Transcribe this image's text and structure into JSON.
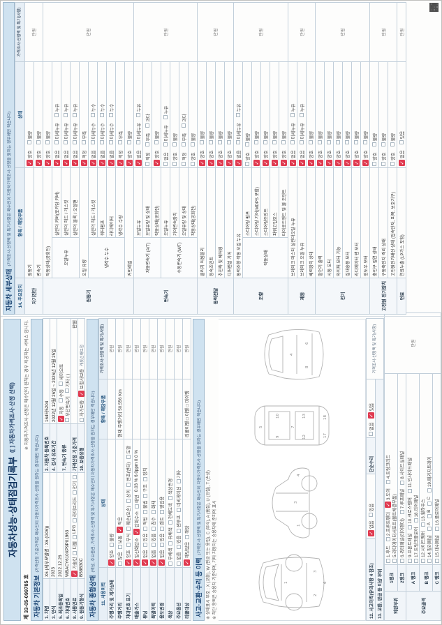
{
  "doc": {
    "serial": "제 33-05-099785 호",
    "title": "자동차성능·상태점검기록부",
    "title_option": "([ ] 자동차가격조사·산정 선택)",
    "service_note": "※ 자동차가격조사·산정은 매수인이 원하는 경우 제공하는 서비스 입니다.",
    "price_col_header": "가격조사·산정액 및 특기(사항)",
    "unit": "만원"
  },
  "basic_info": {
    "header": "자동차 기본정보",
    "note": "(가격산정 기준가격은 매수인이 자동차가격조사·산정을 원하는 경우에만 적습니다)",
    "car_name_label": "1. 차명",
    "car_name": "X6  (세부모델명 : X6 (G06))",
    "reg_no_label": "2. 자동차 등록번호",
    "reg_no": "164터5204",
    "year_label": "3. 연식",
    "year": "2023",
    "inspection_label": "4. 검사 유효기간",
    "inspection": "2022년 12월 26일 ~ 2026년 12월 25일",
    "first_reg_label": "5. 최초등록일",
    "first_reg": "2022.12.26",
    "transmission_label": "7. 변속기 종류",
    "transmission_opts1": "✓자동|수동|세미오토",
    "transmission_opts2": "무단변속기|기타 (          )",
    "vin_label": "6. 차대번호",
    "vin": "WBACY610XP9P01963",
    "fuel_label": "8. 사용연료",
    "fuel_opts": "✓가솔린|디젤|LPG|하이브리드|전기|수소전기|기타",
    "base_price_label": "가격산정 기준가격",
    "base_price_unit": "만원",
    "engine_label": "9. 원동기형식",
    "engine": "B58B30C",
    "warranty_label": "10. 보증유형",
    "warranty_opts": "자가보증|✓보험사보증",
    "warranty_extra": "캐롯손해보험"
  },
  "summary": {
    "header": "자동차 종합상태",
    "note": "(색상, 주요옵션, 가격조사·산정액 및 특기사항은 매수인이 자동차가격조사·산정을 원하는 경우에만 적습니다)",
    "col_history": "11. 사용이력",
    "col_status": "상태",
    "col_item": "항목 / 해당부품",
    "rows": [
      {
        "label": "주행거리 및 계기상태",
        "opts": "✓양호|불량",
        "item": ""
      },
      {
        "label": "주행거리",
        "opts": "많음|보통|✓적음",
        "item": "현재 주행거리      50,556 Km"
      },
      {
        "label": "차대번호 표기",
        "opts": "✓양호|부식|훼손(오손)|상이|변조(변타)|도말",
        "item": ""
      },
      {
        "label": "배출가스",
        "opts": "✓일산화탄소|✓탄화수소|매연",
        "value": "0.03 %   6.0ppm   0.0 %",
        "item": ""
      },
      {
        "label": "튜닝",
        "opts": "✓없음|있음|적법|불법|구조|장치",
        "item": ""
      },
      {
        "label": "특별이력",
        "opts": "✓없음|있음|침수|화재",
        "item": ""
      },
      {
        "label": "용도변경",
        "opts": "✓없음|있음|렌트|영업용",
        "item": ""
      },
      {
        "label": "색상",
        "opts": "무채색|유채색|전체도색|색상변경",
        "item": ""
      },
      {
        "label": "주요옵션",
        "opts": "없음|있음|썬루프|네비게이션|기타",
        "item": ""
      },
      {
        "label": "리콜대상",
        "opts": "✓해당없음|해당",
        "item": "리콜이행   □ 이행  □ 미이행"
      }
    ]
  },
  "accident": {
    "header": "사고·교환·수리 등 이력",
    "note": "(가격조사·산정액 및 특기사항은 매수인이 자동차가격조사·산정을 원하는 경우에만 적습니다)",
    "legend1": "※ 상태표시 부호 : X (교환), W (판금 또는 용접), C (부식), A (흠집), U (요철), T (손상)",
    "legend2": "※ 하단 항목은 승용차 기준이며, 기타 자동차는 승용차에 준하여 표시",
    "row12_label": "12. 사고이력(유의사항 4 참조)",
    "row12_opts": "✓없음|있음",
    "simple_repair_label": "단순수리",
    "simple_repair_opts": "없음|✓있음",
    "row13_label": "13. 교환, 판금 등 이상 부위",
    "groups": [
      {
        "part": "외판부위",
        "ranks": [
          {
            "rank": "1랭크",
            "lines": [
              "1.후드|2.프론트펜더|✓3.도어|4.트렁크리드",
              "5.라디에이터서포트(볼트체결부품)"
            ]
          },
          {
            "rank": "2랭크",
            "lines": [
              "6.쿼터패널(리어펜더)|7.루프패널|8.사이드실패널"
            ]
          }
        ]
      },
      {
        "part": "주요골격",
        "ranks": [
          {
            "rank": "A 랭크",
            "lines": [
              "9.프론트패널|10.크로스멤버|11.인사이드패널",
              "17.트렁크플로어|18.리어패널"
            ]
          },
          {
            "rank": "B 랭크",
            "lines": [
              "12.사이드멤버|13.휠하우스",
              "14.필러패널|A|B|C|19.패키지트레이"
            ]
          },
          {
            "rank": "C 랭크",
            "lines": [
              "15.대쉬패널|16.플로어패널"
            ]
          }
        ]
      }
    ],
    "diagram_views": [
      "front-three-quarter",
      "side",
      "top",
      "rear-three-quarter"
    ]
  },
  "detail": {
    "header": "자동차 세부상태",
    "note": "(가격조사·산정액 및 특기사항은 매수인이 자동차가격조사·산정을 원하는 경우에만 적습니다)",
    "col_device": "14. 주요장치",
    "col_item": "항목 / 해당부품",
    "col_status": "상태",
    "rows": [
      {
        "g": "자기진단",
        "i": "원동기",
        "s": "",
        "o": "✓양호|불량"
      },
      {
        "g": "자기진단",
        "i": "변속기",
        "s": "",
        "o": "✓양호|불량"
      },
      {
        "g": "원동기",
        "i": "작동상태(공회전)",
        "s": "",
        "o": "✓양호|불량"
      },
      {
        "g": "원동기",
        "i": "오일누유",
        "s": "실린더 커버(로커암 커버)",
        "o": "✓없음|미세누유|누유"
      },
      {
        "g": "원동기",
        "i": "오일누유",
        "s": "실린더 헤드 / 개스킷",
        "o": "✓없음|미세누유|누유"
      },
      {
        "g": "원동기",
        "i": "오일누유",
        "s": "실린더 블록 / 오일팬",
        "o": "✓없음|미세누유|누유"
      },
      {
        "g": "원동기",
        "i": "오일 유량",
        "s": "",
        "o": "✓적정|부족"
      },
      {
        "g": "원동기",
        "i": "냉각수 누수",
        "s": "실린더 헤드 / 개스킷",
        "o": "✓없음|미세누수|누수"
      },
      {
        "g": "원동기",
        "i": "냉각수 누수",
        "s": "워터펌프",
        "o": "✓없음|미세누수|누수"
      },
      {
        "g": "원동기",
        "i": "냉각수 누수",
        "s": "라디에이터",
        "o": "✓없음|미세누수|누수"
      },
      {
        "g": "원동기",
        "i": "냉각수 누수",
        "s": "냉각수 수량",
        "o": "✓적정|부족"
      },
      {
        "g": "원동기",
        "i": "커먼레일",
        "s": "",
        "o": "✓양호|불량"
      },
      {
        "g": "변속기",
        "i": "자동변속기 (A/T)",
        "s": "오일누유",
        "o": "✓없음|미세누유|누유"
      },
      {
        "g": "변속기",
        "i": "자동변속기 (A/T)",
        "s": "오일유량 및 상태",
        "o": "적정|부족|과다"
      },
      {
        "g": "변속기",
        "i": "자동변속기 (A/T)",
        "s": "작동상태(공회전)",
        "o": "✓양호|불량"
      },
      {
        "g": "변속기",
        "i": "수동변속기 (M/T)",
        "s": "오일누유",
        "o": "없음|미세누유|누유"
      },
      {
        "g": "변속기",
        "i": "수동변속기 (M/T)",
        "s": "기어변속장치",
        "o": "양호|불량"
      },
      {
        "g": "변속기",
        "i": "수동변속기 (M/T)",
        "s": "오일유량 및 상태",
        "o": "적정|부족|과다"
      },
      {
        "g": "변속기",
        "i": "수동변속기 (M/T)",
        "s": "작동상태(공회전)",
        "o": "양호|불량"
      },
      {
        "g": "동력전달",
        "i": "클러치 어셈블리",
        "s": "",
        "o": "✓양호|불량"
      },
      {
        "g": "동력전달",
        "i": "등속조인트",
        "s": "",
        "o": "✓양호|불량"
      },
      {
        "g": "동력전달",
        "i": "추진축 및 베어링",
        "s": "",
        "o": "✓양호|불량"
      },
      {
        "g": "동력전달",
        "i": "디퍼렌셜 기어",
        "s": "",
        "o": "✓양호|불량"
      },
      {
        "g": "조향",
        "i": "동력조향 작동 오일 누유",
        "s": "",
        "o": "✓없음|미세누유|누유"
      },
      {
        "g": "조향",
        "i": "작동상태",
        "s": "스티어링 펌프",
        "o": "양호|불량"
      },
      {
        "g": "조향",
        "i": "작동상태",
        "s": "스티어링 기어(MDPS 포함)",
        "o": "✓양호|불량"
      },
      {
        "g": "조향",
        "i": "작동상태",
        "s": "스티어링조인트",
        "o": "✓양호|불량"
      },
      {
        "g": "조향",
        "i": "작동상태",
        "s": "파워고압호스",
        "o": "✓양호|불량"
      },
      {
        "g": "조향",
        "i": "작동상태",
        "s": "타이로드엔드 및 볼 조인트",
        "o": "✓양호|불량"
      },
      {
        "g": "제동",
        "i": "브레이크 마스터 실린더오일 누유",
        "s": "",
        "o": "✓없음|미세누유|누유"
      },
      {
        "g": "제동",
        "i": "브레이크 오일 누유",
        "s": "",
        "o": "✓없음|미세누유|누유"
      },
      {
        "g": "제동",
        "i": "배력장치 상태",
        "s": "",
        "o": "✓양호|불량"
      },
      {
        "g": "전기",
        "i": "발전기 출력",
        "s": "",
        "o": "✓양호|불량"
      },
      {
        "g": "전기",
        "i": "시동 모터",
        "s": "",
        "o": "✓양호|불량"
      },
      {
        "g": "전기",
        "i": "와이퍼 모터 기능",
        "s": "",
        "o": "✓양호|불량"
      },
      {
        "g": "전기",
        "i": "실내송풍 모터",
        "s": "",
        "o": "✓양호|불량"
      },
      {
        "g": "전기",
        "i": "라디에이터 팬 모터",
        "s": "",
        "o": "✓양호|불량"
      },
      {
        "g": "전기",
        "i": "윈도우 모터",
        "s": "",
        "o": "✓양호|불량"
      },
      {
        "g": "고전원 전기장치",
        "i": "충전구 절연 상태",
        "s": "",
        "o": "양호|불량"
      },
      {
        "g": "고전원 전기장치",
        "i": "구동축전지 격리 상태",
        "s": "",
        "o": "양호|불량"
      },
      {
        "g": "고전원 전기장치",
        "i": "고전원전기배선 상태 (접속단자, 피복, 보호기구)",
        "s": "",
        "o": "양호|불량"
      },
      {
        "g": "연료",
        "i": "연료누출 (LP가스 포함)",
        "s": "",
        "o": "✓없음|있음"
      }
    ]
  }
}
